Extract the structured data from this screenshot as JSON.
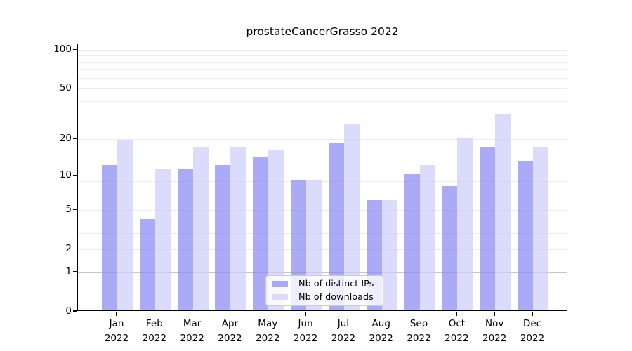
{
  "title": "prostateCancerGrasso 2022",
  "chart_data": {
    "type": "bar",
    "title": "prostateCancerGrasso 2022",
    "categories": [
      "Jan 2022",
      "Feb 2022",
      "Mar 2022",
      "Apr 2022",
      "May 2022",
      "Jun 2022",
      "Jul 2022",
      "Aug 2022",
      "Sep 2022",
      "Oct 2022",
      "Nov 2022",
      "Dec 2022"
    ],
    "series": [
      {
        "name": "Nb of distinct IPs",
        "color": "rgba(134,134,244,0.7)",
        "swatch_color": "#a9a9f4",
        "values": [
          12,
          4,
          11,
          12,
          14,
          9,
          18,
          6,
          10,
          8,
          17,
          13
        ]
      },
      {
        "name": "Nb of downloads",
        "color": "rgba(204,204,249,0.7)",
        "swatch_color": "#dcdcfa",
        "values": [
          19,
          11,
          17,
          17,
          16,
          9,
          26,
          6,
          12,
          20,
          31,
          17
        ]
      }
    ],
    "xlabel": "",
    "ylabel": "",
    "yscale": "log1p",
    "yticks": [
      0,
      1,
      2,
      5,
      10,
      20,
      50,
      100
    ],
    "major_grid_at": [
      1,
      10
    ],
    "minor_grid_at": [
      3,
      4,
      6,
      7,
      8,
      9,
      30,
      40,
      60,
      70,
      80,
      90
    ],
    "ylim": [
      0,
      110
    ],
    "grid": true,
    "legend_position": "lower center"
  }
}
